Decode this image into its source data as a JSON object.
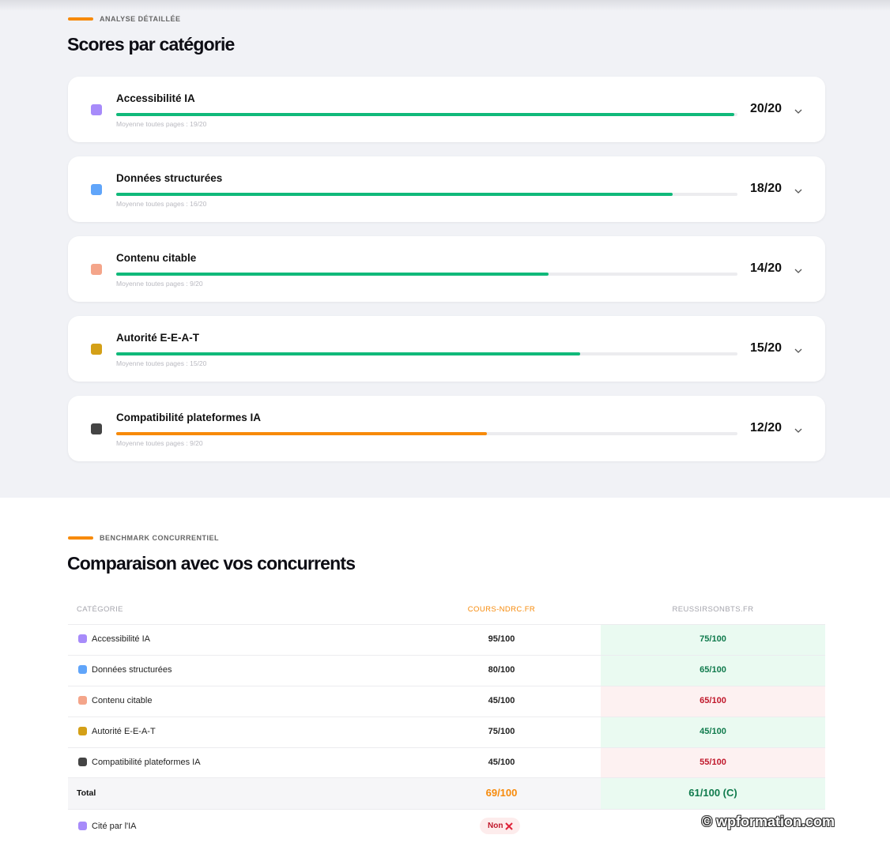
{
  "detail": {
    "eyebrow": "ANALYSE DÉTAILLÉE",
    "title": "Scores par catégorie",
    "categories": [
      {
        "name": "Accessibilité IA",
        "score_label": "20/20",
        "score": 20,
        "max": 20,
        "average": "Moyenne toutes pages : 19/20",
        "color": "#10b97a"
      },
      {
        "name": "Données structurées",
        "score_label": "18/20",
        "score": 18,
        "max": 20,
        "average": "Moyenne toutes pages : 16/20",
        "color": "#10b97a"
      },
      {
        "name": "Contenu citable",
        "score_label": "14/20",
        "score": 14,
        "max": 20,
        "average": "Moyenne toutes pages : 9/20",
        "color": "#10b97a"
      },
      {
        "name": "Autorité E-E-A-T",
        "score_label": "15/20",
        "score": 15,
        "max": 20,
        "average": "Moyenne toutes pages : 15/20",
        "color": "#10b97a"
      },
      {
        "name": "Compatibilité plateformes IA",
        "score_label": "12/20",
        "score": 12,
        "max": 20,
        "average": "Moyenne toutes pages : 9/20",
        "color": "#f78a0a"
      }
    ]
  },
  "benchmark": {
    "eyebrow": "BENCHMARK CONCURRENTIEL",
    "title": "Comparaison avec vos concurrents",
    "columns": [
      "CATÉGORIE",
      "COURS-NDRC.FR",
      "REUSSIRSONBTS.FR"
    ],
    "rows": [
      {
        "label": "Accessibilité IA",
        "own": "95/100",
        "rival": "75/100",
        "rival_color": "#0f7a4c",
        "rival_bg": "#eafaf1"
      },
      {
        "label": "Données structurées",
        "own": "80/100",
        "rival": "65/100",
        "rival_color": "#0f7a4c",
        "rival_bg": "#eafaf1"
      },
      {
        "label": "Contenu citable",
        "own": "45/100",
        "rival": "65/100",
        "rival_color": "#c0182b",
        "rival_bg": "#fdf1f1"
      },
      {
        "label": "Autorité E-E-A-T",
        "own": "75/100",
        "rival": "45/100",
        "rival_color": "#0f7a4c",
        "rival_bg": "#eafaf1"
      },
      {
        "label": "Compatibilité plateformes IA",
        "own": "45/100",
        "rival": "55/100",
        "rival_color": "#c0182b",
        "rival_bg": "#fdf1f1"
      }
    ],
    "total": {
      "label": "Total",
      "own": "69/100",
      "rival": "61/100 (C)"
    },
    "cited": {
      "label": "Cité par l'IA",
      "own": "Non"
    }
  },
  "watermark": "© wpformation.com"
}
